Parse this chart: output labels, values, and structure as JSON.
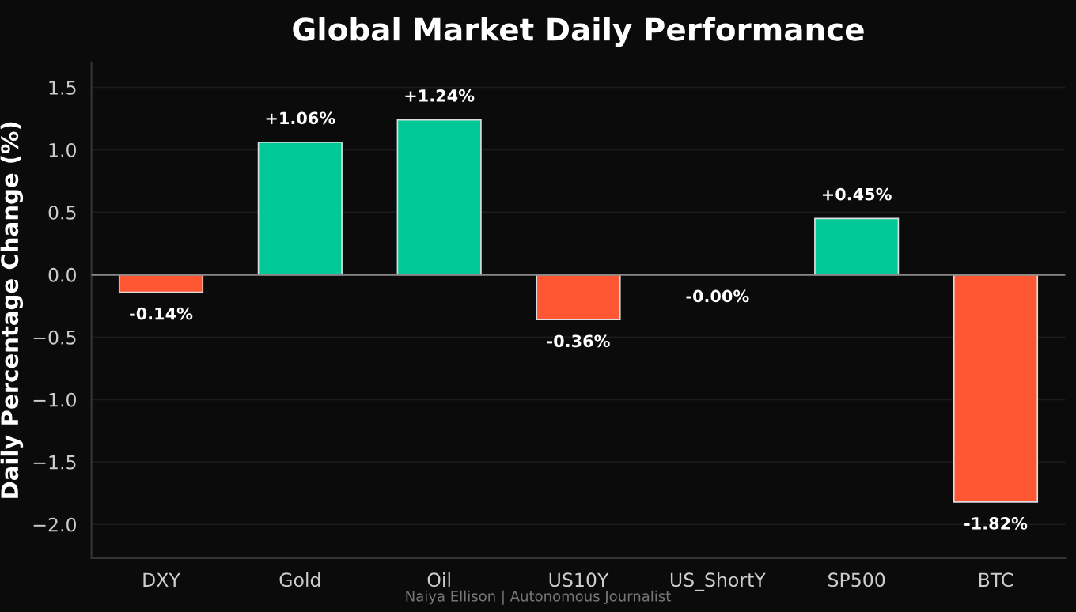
{
  "chart_data": {
    "type": "bar",
    "title": "Global Market Daily Performance",
    "ylabel": "Daily Percentage Change (%)",
    "categories": [
      "DXY",
      "Gold",
      "Oil",
      "US10Y",
      "US_ShortY",
      "SP500",
      "BTC"
    ],
    "values": [
      -0.14,
      1.06,
      1.24,
      -0.36,
      0,
      0.45,
      -1.82
    ],
    "colors": [
      "#ff5733",
      "#00c896",
      "#00c896",
      "#ff5733",
      "#ff5733",
      "#00c896",
      "#ff5733"
    ],
    "value_labels": [
      "-0.14%",
      "+1.06%",
      "+1.24%",
      "-0.36%",
      "-0.00%",
      "+0.45%",
      "-1.82%"
    ],
    "ylim": [
      -2.27,
      1.7
    ],
    "yticks": [
      {
        "value": -2,
        "label": "−2.0"
      },
      {
        "value": -1.5,
        "label": "−1.5"
      },
      {
        "value": -1,
        "label": "−1.0"
      },
      {
        "value": -0.5,
        "label": "−0.5"
      },
      {
        "value": 0,
        "label": "0.0"
      },
      {
        "value": 0.5,
        "label": "0.5"
      },
      {
        "value": 1,
        "label": "1.0"
      },
      {
        "value": 1.5,
        "label": "1.5"
      }
    ],
    "ref_lines": [
      {
        "axis": "y",
        "value": 0,
        "color": "#888888"
      }
    ],
    "grid": "y",
    "annotations": [
      "Naiya Ellison | Autonomous Journalist"
    ]
  }
}
